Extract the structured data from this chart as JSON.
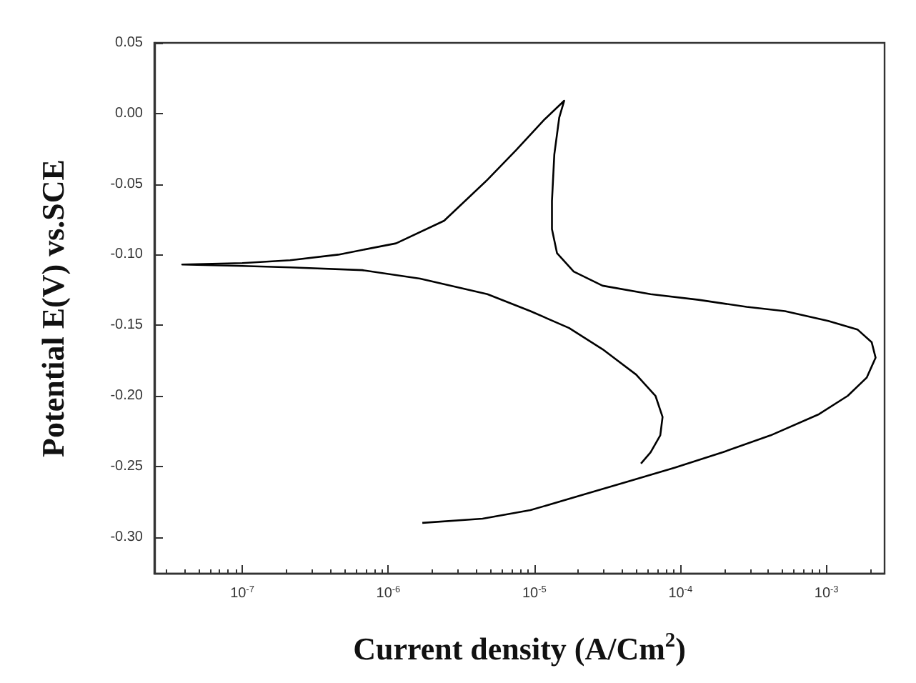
{
  "chart_data": {
    "type": "line",
    "xlabel": "Current density (A/Cm$^{2}$)",
    "ylabel": "Potential E(V) vs.SCE",
    "log": "x",
    "xlim": [
      2.5e-08,
      0.0025
    ],
    "ylim": [
      -0.326,
      0.05
    ],
    "xticks": [
      {
        "value": 1e-07,
        "label": "10$^{-7}$"
      },
      {
        "value": 1e-06,
        "label": "10$^{-6}$"
      },
      {
        "value": 1e-05,
        "label": "10$^{-5}$"
      },
      {
        "value": 0.0001,
        "label": "10$^{-4}$"
      },
      {
        "value": 0.001,
        "label": "10$^{-3}$"
      }
    ],
    "yticks": [
      {
        "value": 0.05,
        "label": "0.05"
      },
      {
        "value": 0,
        "label": "0.00"
      },
      {
        "value": -0.05,
        "label": "-0.05"
      },
      {
        "value": -0.1,
        "label": "-0.10"
      },
      {
        "value": -0.15,
        "label": "-0.15"
      },
      {
        "value": -0.2,
        "label": "-0.20"
      },
      {
        "value": -0.25,
        "label": "-0.25"
      },
      {
        "value": -0.3,
        "label": "-0.30"
      }
    ],
    "grid": false,
    "marker": "none",
    "line_style": "solid",
    "series": [
      {
        "color": "#000000",
        "x": [
          1.71e-06,
          4.42e-06,
          9.4e-06,
          2.01e-05,
          4.29e-05,
          9.1e-05,
          0.000195,
          0.000415,
          0.00089,
          0.0014,
          0.00189,
          0.00217,
          0.00204,
          0.00163,
          0.00103,
          0.00052,
          0.000284,
          0.000133,
          6.25e-05,
          2.93e-05,
          1.86e-05,
          1.43e-05,
          1.32e-05,
          1.32e-05,
          1.37e-05,
          1.48e-05,
          1.6e-05,
          1.18e-05,
          7.5e-06,
          4.77e-06,
          2.41e-06,
          1.13e-06,
          4.55e-07,
          2.13e-07,
          1e-07,
          3.88e-08,
          1e-07,
          2.13e-07,
          6.64e-07,
          1.65e-06,
          4.77e-06,
          9.4e-06,
          1.73e-05,
          2.93e-05,
          4.98e-05,
          6.75e-05,
          7.55e-05,
          7.28e-05,
          6.25e-05,
          5.37e-05
        ],
        "values": [
          -0.29,
          -0.287,
          -0.281,
          -0.271,
          -0.261,
          -0.251,
          -0.24,
          -0.228,
          -0.213,
          -0.2,
          -0.187,
          -0.173,
          -0.162,
          -0.153,
          -0.147,
          -0.14,
          -0.137,
          -0.132,
          -0.128,
          -0.122,
          -0.112,
          -0.099,
          -0.082,
          -0.062,
          -0.029,
          -0.003,
          0.009,
          -0.004,
          -0.026,
          -0.047,
          -0.076,
          -0.092,
          -0.1,
          -0.104,
          -0.106,
          -0.107,
          -0.108,
          -0.109,
          -0.111,
          -0.117,
          -0.128,
          -0.14,
          -0.152,
          -0.167,
          -0.185,
          -0.2,
          -0.215,
          -0.228,
          -0.24,
          -0.248
        ]
      }
    ]
  }
}
